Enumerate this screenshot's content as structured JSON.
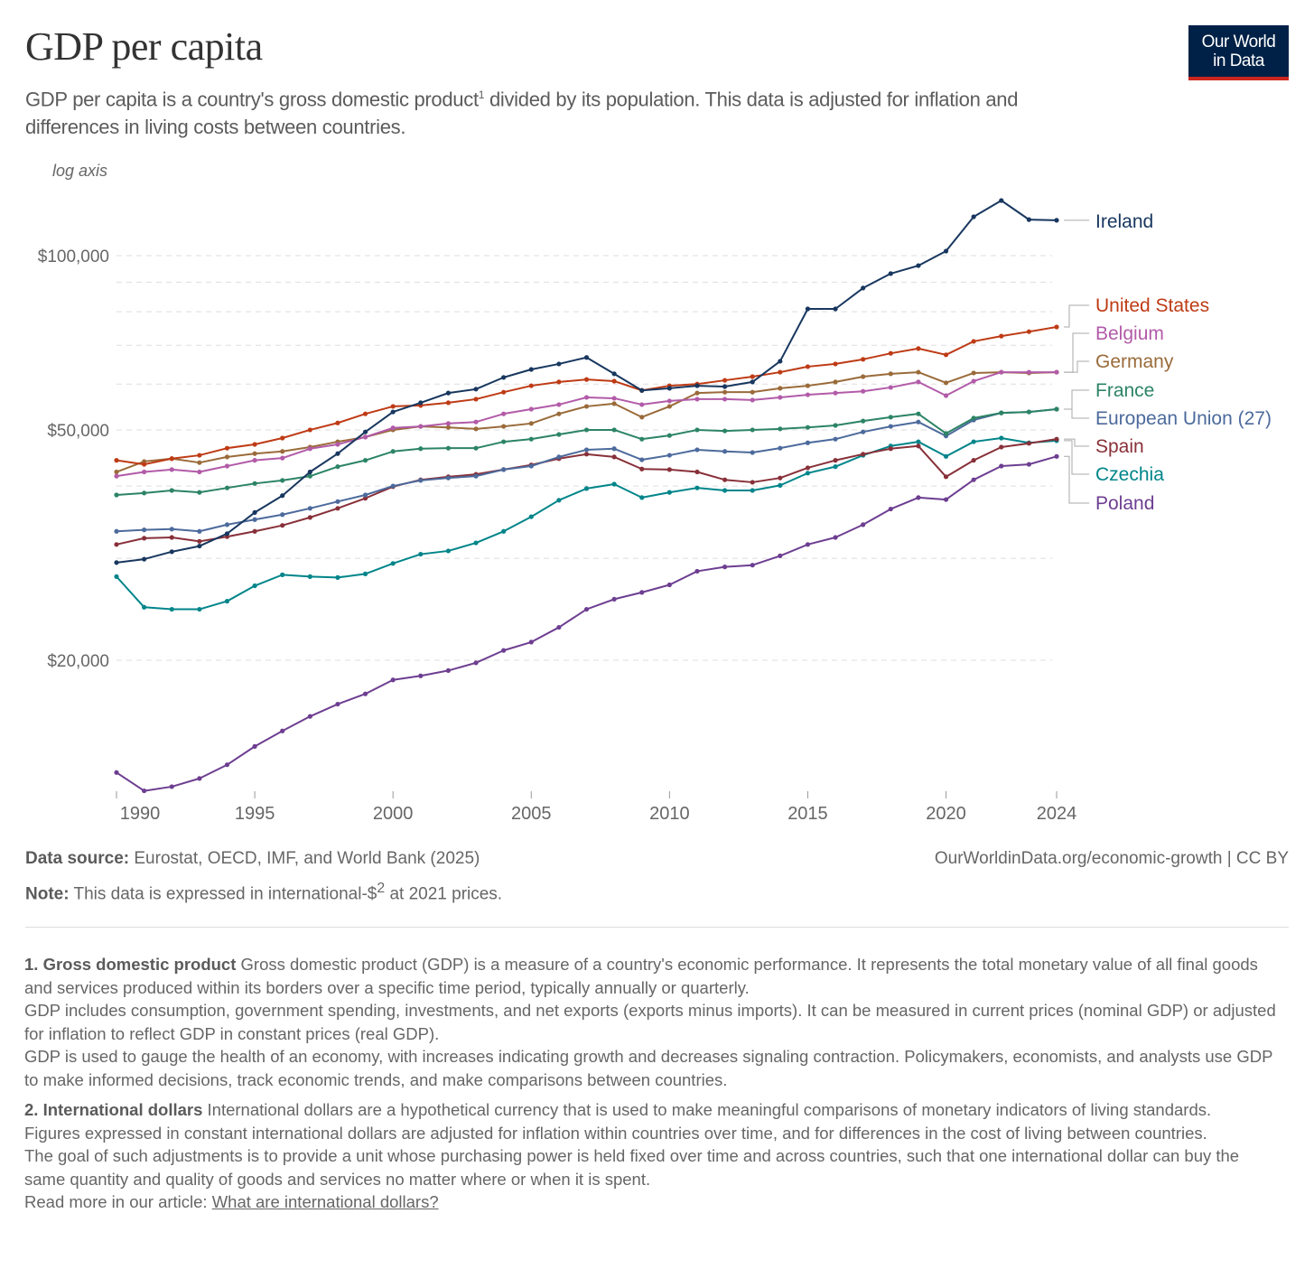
{
  "header": {
    "title": "GDP per capita",
    "subtitle_part1": "GDP per capita is a country's gross domestic product",
    "subtitle_sup": "1",
    "subtitle_part2": " divided by its population. This data is adjusted for inflation and differences in living costs between countries.",
    "logo_line1": "Our World",
    "logo_line2": "in Data",
    "logo_colors": {
      "background": "#002147",
      "accent": "#ce261e"
    }
  },
  "chart_data": {
    "type": "line",
    "title": "GDP per capita",
    "scale": "log",
    "scale_label": "log axis",
    "x": [
      1990,
      1991,
      1992,
      1993,
      1994,
      1995,
      1996,
      1997,
      1998,
      1999,
      2000,
      2001,
      2002,
      2003,
      2004,
      2005,
      2006,
      2007,
      2008,
      2009,
      2010,
      2011,
      2012,
      2013,
      2014,
      2015,
      2016,
      2017,
      2018,
      2019,
      2020,
      2021,
      2022,
      2023,
      2024
    ],
    "x_ticks": [
      "1990",
      "1995",
      "2000",
      "2005",
      "2010",
      "2015",
      "2020",
      "2024"
    ],
    "x_tick_values": [
      1990,
      1995,
      2000,
      2005,
      2010,
      2015,
      2020,
      2024
    ],
    "y_ticks": [
      {
        "value": 100000,
        "label": "$100,000"
      },
      {
        "value": 50000,
        "label": "$50,000"
      },
      {
        "value": 20000,
        "label": "$20,000"
      }
    ],
    "ylim": [
      11500,
      130000
    ],
    "grid": "horizontal dashed",
    "legend": "right, line-end labels",
    "series": [
      {
        "name": "Ireland",
        "color": "#18375f",
        "values": [
          29500,
          29900,
          30800,
          31500,
          33100,
          36000,
          38500,
          42300,
          45500,
          49600,
          53700,
          55700,
          57900,
          58800,
          61600,
          63600,
          65000,
          66700,
          62500,
          58500,
          59000,
          59600,
          59400,
          60500,
          65700,
          80900,
          80900,
          87900,
          93100,
          96100,
          101800,
          116700,
          124500,
          115400,
          115100
        ]
      },
      {
        "name": "United States",
        "color": "#be3b15",
        "values": [
          44300,
          43600,
          44600,
          45200,
          46500,
          47200,
          48400,
          50000,
          51400,
          53300,
          54900,
          55100,
          55700,
          56500,
          58100,
          59600,
          60500,
          61100,
          60700,
          58500,
          59600,
          60000,
          60900,
          61800,
          62900,
          64300,
          65000,
          66200,
          67800,
          69100,
          67400,
          71100,
          72600,
          73900,
          75300
        ]
      },
      {
        "name": "Belgium",
        "color": "#b25ba8",
        "values": [
          41600,
          42300,
          42700,
          42300,
          43300,
          44300,
          44700,
          46400,
          47200,
          48600,
          50400,
          50700,
          51300,
          51600,
          53300,
          54300,
          55300,
          56900,
          56700,
          55300,
          56100,
          56500,
          56500,
          56300,
          56900,
          57500,
          57900,
          58300,
          59200,
          60500,
          57300,
          60700,
          62900,
          62900,
          62900
        ]
      },
      {
        "name": "Germany",
        "color": "#9a6b3a",
        "values": [
          42300,
          44100,
          44600,
          43900,
          44900,
          45500,
          45900,
          46700,
          47700,
          48600,
          50000,
          50700,
          50500,
          50200,
          50700,
          51300,
          53300,
          54900,
          55500,
          52600,
          54900,
          57900,
          58100,
          58100,
          59000,
          59600,
          60500,
          61800,
          62500,
          62900,
          60300,
          62700,
          62900,
          62700,
          62900
        ]
      },
      {
        "name": "France",
        "color": "#2c8465",
        "values": [
          38600,
          38900,
          39300,
          39000,
          39700,
          40400,
          40900,
          41600,
          43200,
          44300,
          45900,
          46400,
          46500,
          46500,
          47700,
          48200,
          49100,
          50000,
          50000,
          48200,
          48900,
          50000,
          49800,
          50000,
          50200,
          50500,
          50900,
          51800,
          52600,
          53300,
          49300,
          52400,
          53500,
          53700,
          54300
        ]
      },
      {
        "name": "European Union (27)",
        "color": "#4c6a9c",
        "values": [
          33400,
          33600,
          33700,
          33400,
          34300,
          35000,
          35700,
          36600,
          37600,
          38600,
          40000,
          40900,
          41300,
          41600,
          42700,
          43300,
          44900,
          46200,
          46400,
          44400,
          45200,
          46200,
          45900,
          45700,
          46500,
          47500,
          48200,
          49600,
          50700,
          51600,
          48800,
          52000,
          53500,
          53700,
          54300
        ]
      },
      {
        "name": "Spain",
        "color": "#883039",
        "values": [
          31700,
          32500,
          32600,
          32100,
          32700,
          33400,
          34200,
          35300,
          36600,
          38100,
          39900,
          41000,
          41500,
          41900,
          42700,
          43500,
          44600,
          45400,
          44900,
          42800,
          42700,
          42300,
          41000,
          40600,
          41300,
          43000,
          44300,
          45400,
          46400,
          46900,
          41500,
          44300,
          46700,
          47400,
          48200
        ]
      },
      {
        "name": "Czechia",
        "color": "#00858a",
        "values": [
          27900,
          24700,
          24500,
          24500,
          25300,
          26900,
          28100,
          27900,
          27800,
          28200,
          29400,
          30500,
          30900,
          31900,
          33400,
          35400,
          37800,
          39600,
          40300,
          38200,
          39000,
          39700,
          39300,
          39300,
          40100,
          42100,
          43200,
          45200,
          46900,
          47700,
          45000,
          47700,
          48400,
          47500,
          47900
        ]
      },
      {
        "name": "Poland",
        "color": "#6d3e91",
        "values": [
          12800,
          11900,
          12100,
          12500,
          13200,
          14200,
          15100,
          16000,
          16800,
          17500,
          18500,
          18800,
          19200,
          19800,
          20800,
          21500,
          22800,
          24500,
          25500,
          26200,
          27000,
          28500,
          29000,
          29200,
          30300,
          31700,
          32600,
          34300,
          36500,
          38200,
          37900,
          41000,
          43300,
          43600,
          45000
        ]
      }
    ]
  },
  "footer": {
    "source_label": "Data source:",
    "source_text": " Eurostat, OECD, IMF, and World Bank (2025)",
    "note_label": "Note:",
    "note_text_1": " This data is expressed in international-$",
    "note_sup": "2",
    "note_text_2": " at 2021 prices.",
    "license": "OurWorldinData.org/economic-growth | CC BY"
  },
  "footnotes": [
    {
      "heading": "1. Gross domestic product",
      "paragraphs": [
        " Gross domestic product (GDP) is a measure of a country's economic performance. It represents the total monetary value of all final goods and services produced within its borders over a specific time period, typically annually or quarterly.",
        "GDP includes consumption, government spending, investments, and net exports (exports minus imports). It can be measured in current prices (nominal GDP) or adjusted for inflation to reflect GDP in constant prices (real GDP).",
        "GDP is used to gauge the health of an economy, with increases indicating growth and decreases signaling contraction. Policymakers, economists, and analysts use GDP to make informed decisions, track economic trends, and make comparisons between countries."
      ]
    },
    {
      "heading": "2. International dollars",
      "paragraphs": [
        " International dollars are a hypothetical currency that is used to make meaningful comparisons of monetary indicators of living standards.",
        "Figures expressed in constant international dollars are adjusted for inflation within countries over time, and for differences in the cost of living between countries.",
        "The goal of such adjustments is to provide a unit whose purchasing power is held fixed over time and across countries, such that one international dollar can buy the same quantity and quality of goods and services no matter where or when it is spent."
      ],
      "read_more": "Read more in our article: ",
      "link_text": "What are international dollars?"
    }
  ]
}
